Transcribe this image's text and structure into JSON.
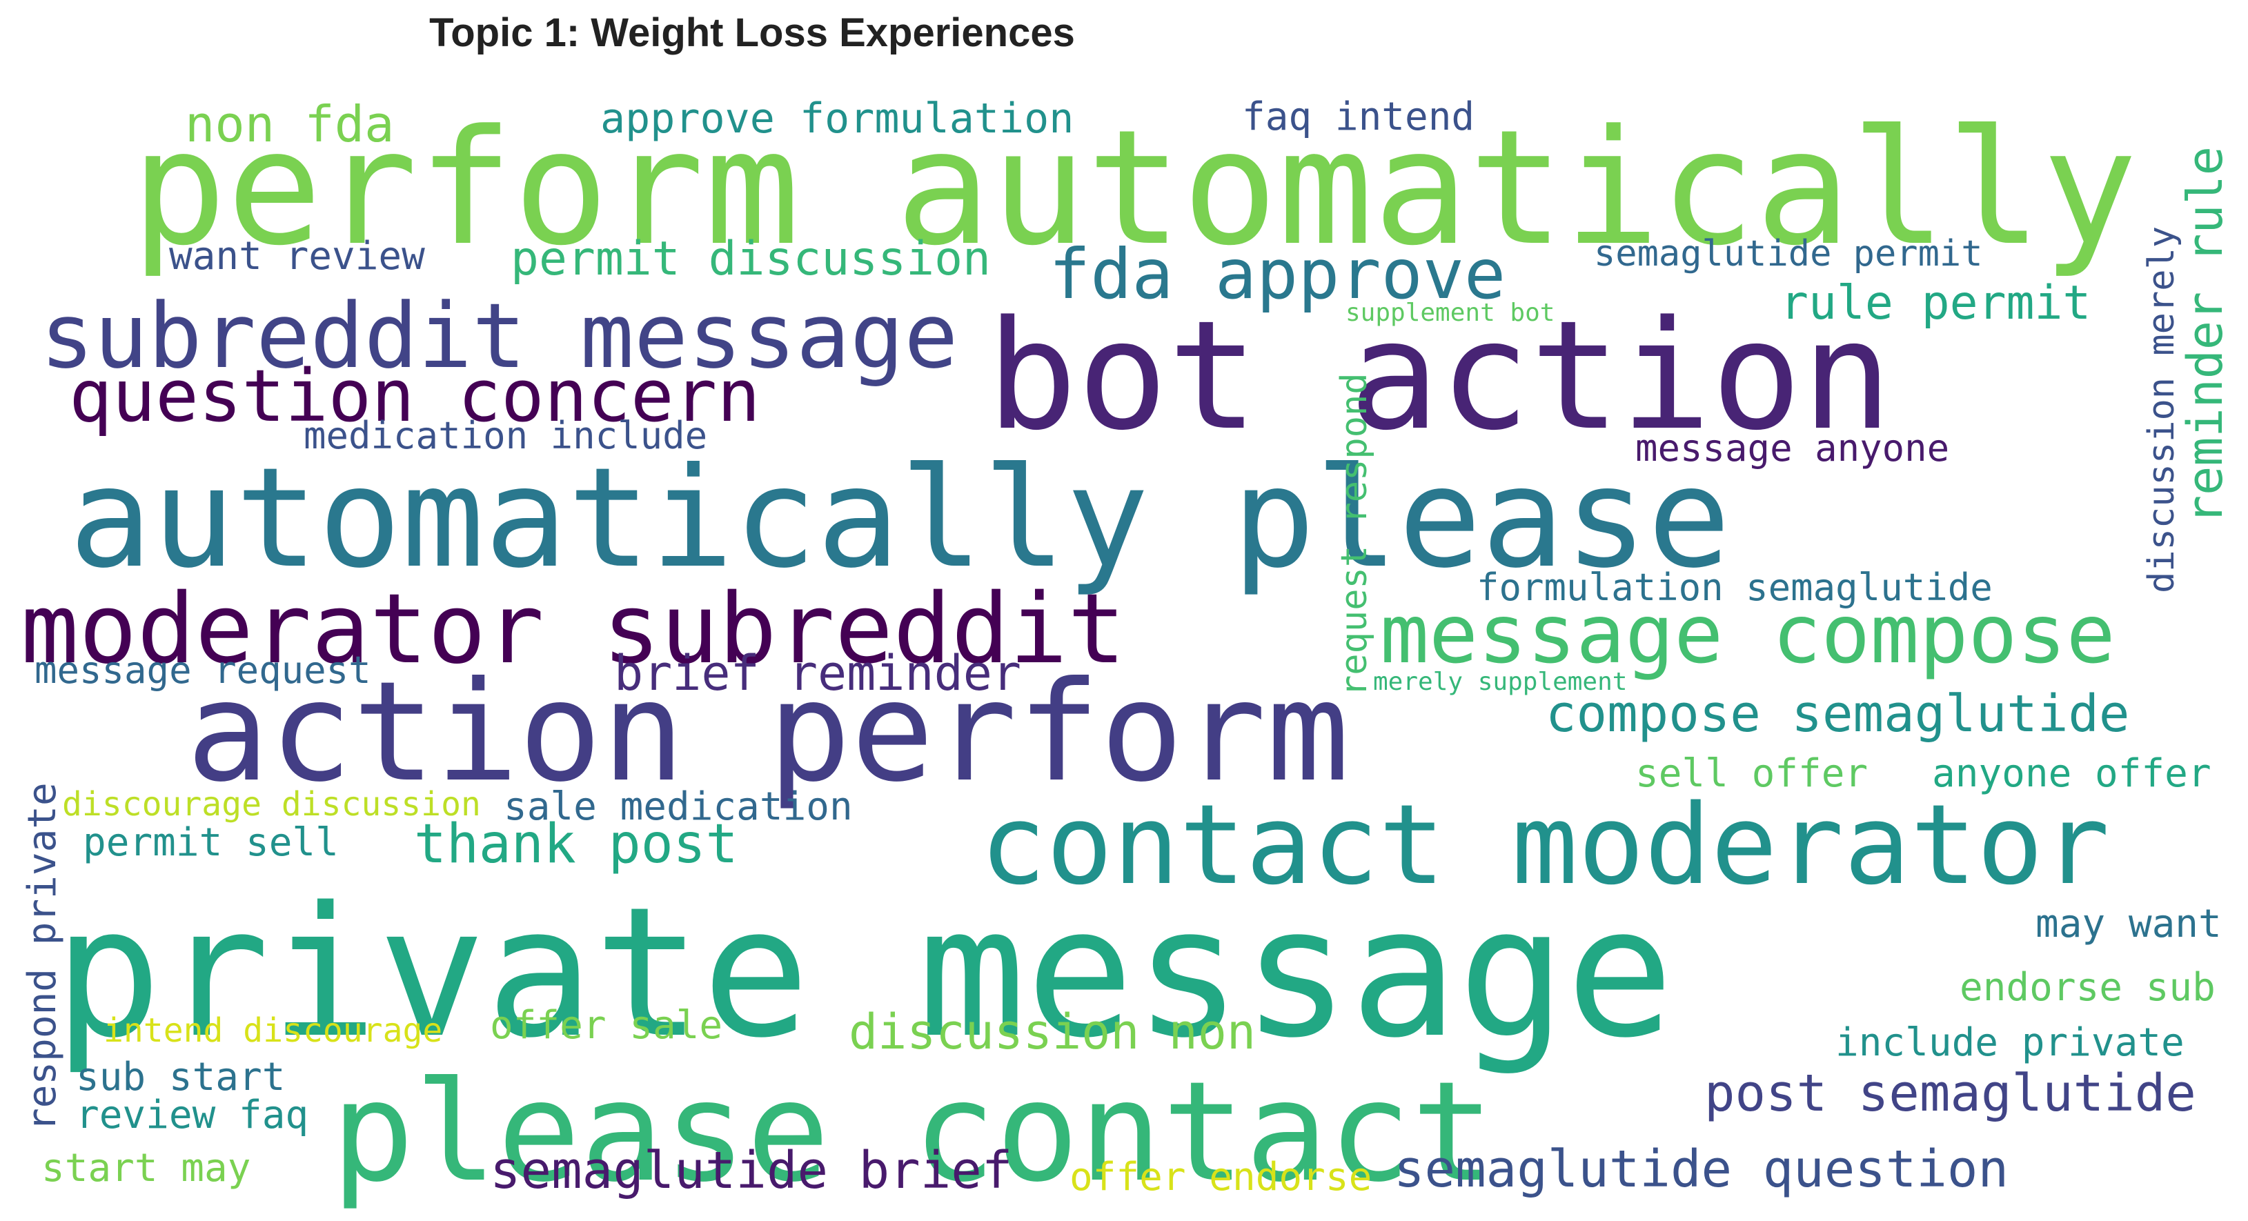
{
  "title": "Topic 1: Weight Loss Experiences",
  "words": [
    {
      "text": "perform automatically",
      "color": "#7ad151"
    },
    {
      "text": "bot action",
      "color": "#482475"
    },
    {
      "text": "automatically please",
      "color": "#2a788e"
    },
    {
      "text": "action perform",
      "color": "#433e85"
    },
    {
      "text": "private message",
      "color": "#22a884"
    },
    {
      "text": "please contact",
      "color": "#35b779"
    },
    {
      "text": "subreddit message",
      "color": "#414487"
    },
    {
      "text": "moderator subreddit",
      "color": "#440154"
    },
    {
      "text": "contact moderator",
      "color": "#21918c"
    },
    {
      "text": "message compose",
      "color": "#44bf70"
    },
    {
      "text": "question concern",
      "color": "#440154"
    },
    {
      "text": "fda approve",
      "color": "#2a788e"
    },
    {
      "text": "non fda",
      "color": "#7ad151"
    },
    {
      "text": "approve formulation",
      "color": "#21918c"
    },
    {
      "text": "faq intend",
      "color": "#3b528b"
    },
    {
      "text": "want review",
      "color": "#3b528b"
    },
    {
      "text": "permit discussion",
      "color": "#35b779"
    },
    {
      "text": "semaglutide permit",
      "color": "#31688e"
    },
    {
      "text": "supplement bot",
      "color": "#5ec962"
    },
    {
      "text": "rule permit",
      "color": "#22a884"
    },
    {
      "text": "reminder rule",
      "color": "#35b779"
    },
    {
      "text": "discussion merely",
      "color": "#3b528b"
    },
    {
      "text": "request respond",
      "color": "#44bf70"
    },
    {
      "text": "medication include",
      "color": "#3b528b"
    },
    {
      "text": "message anyone",
      "color": "#481a6c"
    },
    {
      "text": "formulation semaglutide",
      "color": "#2c728e"
    },
    {
      "text": "message request",
      "color": "#31688e"
    },
    {
      "text": "brief reminder",
      "color": "#472d7b"
    },
    {
      "text": "merely supplement",
      "color": "#35b779"
    },
    {
      "text": "compose semaglutide",
      "color": "#21918c"
    },
    {
      "text": "sell offer",
      "color": "#5ec962"
    },
    {
      "text": "anyone offer",
      "color": "#22a884"
    },
    {
      "text": "discourage discussion",
      "color": "#bddf26"
    },
    {
      "text": "sale medication",
      "color": "#31688e"
    },
    {
      "text": "permit sell",
      "color": "#21918c"
    },
    {
      "text": "thank post",
      "color": "#22a884"
    },
    {
      "text": "respond private",
      "color": "#3b528b"
    },
    {
      "text": "may want",
      "color": "#2c728e"
    },
    {
      "text": "endorse sub",
      "color": "#5ec962"
    },
    {
      "text": "intend discourage",
      "color": "#d8e219"
    },
    {
      "text": "offer sale",
      "color": "#7ad151"
    },
    {
      "text": "discussion non",
      "color": "#7ad151"
    },
    {
      "text": "include private",
      "color": "#21918c"
    },
    {
      "text": "sub start",
      "color": "#2c728e"
    },
    {
      "text": "review faq",
      "color": "#21918c"
    },
    {
      "text": "post semaglutide",
      "color": "#414487"
    },
    {
      "text": "start may",
      "color": "#7ad151"
    },
    {
      "text": "semaglutide brief",
      "color": "#481a6c"
    },
    {
      "text": "offer endorse",
      "color": "#d8e219"
    },
    {
      "text": "semaglutide question",
      "color": "#3b528b"
    }
  ]
}
